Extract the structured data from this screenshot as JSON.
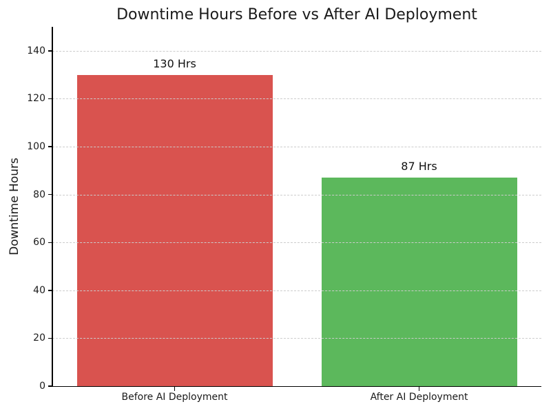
{
  "chart_data": {
    "type": "bar",
    "title": "Downtime Hours Before vs After AI Deployment",
    "categories": [
      "Before AI Deployment",
      "After AI Deployment"
    ],
    "values": [
      130,
      87
    ],
    "bar_labels": [
      "130 Hrs",
      "87 Hrs"
    ],
    "bar_colors": [
      "#d9534f",
      "#5cb85c"
    ],
    "xlabel": "",
    "ylabel": "Downtime Hours",
    "ylim": [
      0,
      150
    ],
    "yticks": [
      0,
      20,
      40,
      60,
      80,
      100,
      120,
      140
    ],
    "bar_width": 0.8,
    "grid": {
      "axis": "y",
      "style": "dashed",
      "color": "#cccccc",
      "above_bars": true
    },
    "legend": "none",
    "background": "#ffffff",
    "text_color": "#1a1a1a",
    "spines": [
      "left",
      "bottom"
    ]
  }
}
